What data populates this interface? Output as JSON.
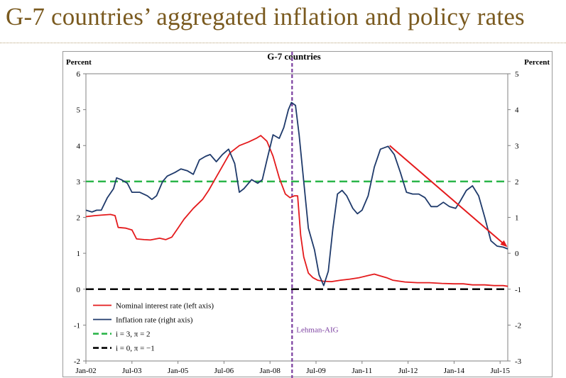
{
  "slide": {
    "title": "G-7 countries’ aggregated inflation and policy rates"
  },
  "chart_data": {
    "type": "line",
    "title": "G-7 countries",
    "left_axis_label": "Percent",
    "right_axis_label": "Percent",
    "left_ylim": [
      -2,
      6
    ],
    "right_ylim": [
      -3,
      5
    ],
    "left_ticks": [
      "-2",
      "-1",
      "0",
      "1",
      "2",
      "3",
      "4",
      "5",
      "6"
    ],
    "right_ticks": [
      "-3",
      "-2",
      "-1",
      "0",
      "1",
      "2",
      "3",
      "4",
      "5"
    ],
    "x_range": [
      2002.0,
      2015.75
    ],
    "x_ticks": [
      {
        "label": "Jan-02",
        "t": 2002.0
      },
      {
        "label": "Jul-03",
        "t": 2003.5
      },
      {
        "label": "Jan-05",
        "t": 2005.0
      },
      {
        "label": "Jul-06",
        "t": 2006.5
      },
      {
        "label": "Jan-08",
        "t": 2008.0
      },
      {
        "label": "Jul-09",
        "t": 2009.5
      },
      {
        "label": "Jan-11",
        "t": 2011.0
      },
      {
        "label": "Jul-12",
        "t": 2012.5
      },
      {
        "label": "Jan-14",
        "t": 2014.0
      },
      {
        "label": "Jul-15",
        "t": 2015.5
      }
    ],
    "series": [
      {
        "name": "Nominal interest rate (left axis)",
        "axis": "left",
        "color": "#e41a1c",
        "points": [
          [
            2002.0,
            2.02
          ],
          [
            2002.3,
            2.05
          ],
          [
            2002.6,
            2.07
          ],
          [
            2002.8,
            2.08
          ],
          [
            2002.95,
            2.05
          ],
          [
            2003.05,
            1.72
          ],
          [
            2003.3,
            1.7
          ],
          [
            2003.5,
            1.65
          ],
          [
            2003.65,
            1.4
          ],
          [
            2003.9,
            1.38
          ],
          [
            2004.1,
            1.37
          ],
          [
            2004.4,
            1.42
          ],
          [
            2004.6,
            1.38
          ],
          [
            2004.8,
            1.45
          ],
          [
            2005.0,
            1.7
          ],
          [
            2005.2,
            1.95
          ],
          [
            2005.5,
            2.25
          ],
          [
            2005.8,
            2.5
          ],
          [
            2006.0,
            2.75
          ],
          [
            2006.2,
            3.05
          ],
          [
            2006.5,
            3.5
          ],
          [
            2006.7,
            3.8
          ],
          [
            2007.0,
            4.0
          ],
          [
            2007.3,
            4.1
          ],
          [
            2007.55,
            4.2
          ],
          [
            2007.7,
            4.28
          ],
          [
            2007.9,
            4.12
          ],
          [
            2008.1,
            3.7
          ],
          [
            2008.3,
            3.1
          ],
          [
            2008.5,
            2.65
          ],
          [
            2008.65,
            2.55
          ],
          [
            2008.8,
            2.6
          ],
          [
            2008.9,
            2.6
          ],
          [
            2009.0,
            1.5
          ],
          [
            2009.1,
            0.9
          ],
          [
            2009.25,
            0.45
          ],
          [
            2009.4,
            0.32
          ],
          [
            2009.55,
            0.25
          ],
          [
            2009.75,
            0.22
          ],
          [
            2010.0,
            0.21
          ],
          [
            2010.3,
            0.25
          ],
          [
            2010.6,
            0.28
          ],
          [
            2010.9,
            0.32
          ],
          [
            2011.2,
            0.38
          ],
          [
            2011.4,
            0.42
          ],
          [
            2011.55,
            0.38
          ],
          [
            2011.8,
            0.32
          ],
          [
            2012.0,
            0.25
          ],
          [
            2012.4,
            0.2
          ],
          [
            2012.8,
            0.18
          ],
          [
            2013.2,
            0.18
          ],
          [
            2013.6,
            0.16
          ],
          [
            2014.0,
            0.15
          ],
          [
            2014.3,
            0.15
          ],
          [
            2014.6,
            0.12
          ],
          [
            2015.0,
            0.12
          ],
          [
            2015.3,
            0.1
          ],
          [
            2015.6,
            0.1
          ],
          [
            2015.75,
            0.08
          ]
        ]
      },
      {
        "name": "Inflation rate (right axis)",
        "axis": "right",
        "color": "#1f3a6b",
        "points": [
          [
            2002.0,
            1.2
          ],
          [
            2002.2,
            1.15
          ],
          [
            2002.35,
            1.2
          ],
          [
            2002.5,
            1.2
          ],
          [
            2002.7,
            1.55
          ],
          [
            2002.9,
            1.8
          ],
          [
            2003.0,
            2.1
          ],
          [
            2003.15,
            2.05
          ],
          [
            2003.35,
            1.95
          ],
          [
            2003.5,
            1.7
          ],
          [
            2003.75,
            1.7
          ],
          [
            2004.0,
            1.6
          ],
          [
            2004.15,
            1.5
          ],
          [
            2004.3,
            1.6
          ],
          [
            2004.5,
            2.0
          ],
          [
            2004.65,
            2.15
          ],
          [
            2004.9,
            2.25
          ],
          [
            2005.1,
            2.35
          ],
          [
            2005.3,
            2.3
          ],
          [
            2005.5,
            2.2
          ],
          [
            2005.7,
            2.6
          ],
          [
            2005.9,
            2.7
          ],
          [
            2006.05,
            2.75
          ],
          [
            2006.15,
            2.65
          ],
          [
            2006.25,
            2.55
          ],
          [
            2006.45,
            2.75
          ],
          [
            2006.65,
            2.9
          ],
          [
            2006.85,
            2.5
          ],
          [
            2007.0,
            1.7
          ],
          [
            2007.15,
            1.8
          ],
          [
            2007.4,
            2.05
          ],
          [
            2007.6,
            1.95
          ],
          [
            2007.75,
            2.05
          ],
          [
            2007.9,
            2.6
          ],
          [
            2008.1,
            3.3
          ],
          [
            2008.3,
            3.2
          ],
          [
            2008.45,
            3.5
          ],
          [
            2008.6,
            4.0
          ],
          [
            2008.7,
            4.2
          ],
          [
            2008.83,
            4.12
          ],
          [
            2008.95,
            3.3
          ],
          [
            2009.1,
            2.0
          ],
          [
            2009.25,
            0.7
          ],
          [
            2009.45,
            0.1
          ],
          [
            2009.6,
            -0.6
          ],
          [
            2009.75,
            -0.9
          ],
          [
            2009.9,
            -0.5
          ],
          [
            2010.05,
            0.7
          ],
          [
            2010.2,
            1.65
          ],
          [
            2010.35,
            1.75
          ],
          [
            2010.5,
            1.6
          ],
          [
            2010.7,
            1.25
          ],
          [
            2010.85,
            1.1
          ],
          [
            2011.0,
            1.2
          ],
          [
            2011.2,
            1.6
          ],
          [
            2011.4,
            2.4
          ],
          [
            2011.6,
            2.9
          ],
          [
            2011.85,
            2.98
          ],
          [
            2012.05,
            2.75
          ],
          [
            2012.25,
            2.25
          ],
          [
            2012.45,
            1.7
          ],
          [
            2012.65,
            1.65
          ],
          [
            2012.85,
            1.65
          ],
          [
            2013.05,
            1.55
          ],
          [
            2013.25,
            1.3
          ],
          [
            2013.45,
            1.3
          ],
          [
            2013.65,
            1.42
          ],
          [
            2013.85,
            1.3
          ],
          [
            2014.05,
            1.25
          ],
          [
            2014.2,
            1.45
          ],
          [
            2014.4,
            1.75
          ],
          [
            2014.6,
            1.88
          ],
          [
            2014.8,
            1.6
          ],
          [
            2015.0,
            1.0
          ],
          [
            2015.2,
            0.35
          ],
          [
            2015.4,
            0.2
          ],
          [
            2015.6,
            0.17
          ],
          [
            2015.75,
            0.12
          ]
        ]
      }
    ],
    "reference_lines": [
      {
        "name": "i = 3,  π = 2",
        "axis": "left",
        "value": 3,
        "color": "#2bb54a",
        "style": "dashed"
      },
      {
        "name": "i = 0,  π = −1",
        "axis": "left",
        "value": 0,
        "color": "#000000",
        "style": "dashed"
      }
    ],
    "vertical_marker": {
      "label": "Lehman-AIG",
      "t": 2008.72,
      "color": "#7b3fa0"
    },
    "trend_arrow": {
      "color": "#e41a1c",
      "from": [
        2011.9,
        3.0
      ],
      "to": [
        2015.75,
        0.2
      ],
      "axis": "right"
    },
    "legend": {
      "position": "bottom-left",
      "entries": [
        {
          "label": "Nominal interest rate (left axis)",
          "color": "#e41a1c",
          "style": "solid"
        },
        {
          "label": "Inflation rate (right axis)",
          "color": "#1f3a6b",
          "style": "solid"
        },
        {
          "label": "i = 3,  π = 2",
          "color": "#2bb54a",
          "style": "dashed"
        },
        {
          "label": "i = 0,  π = −1",
          "color": "#000000",
          "style": "dashed"
        }
      ]
    }
  }
}
